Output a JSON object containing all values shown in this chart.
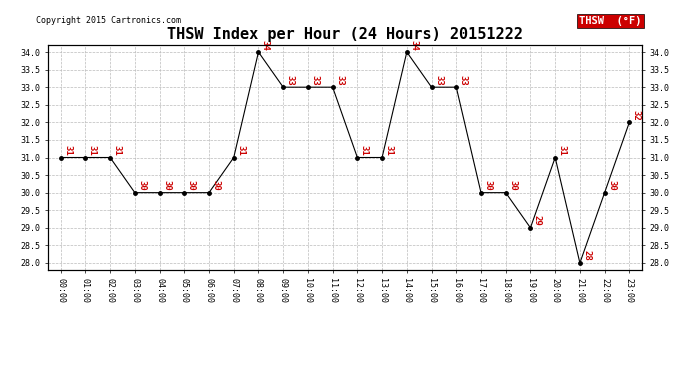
{
  "title": "THSW Index per Hour (24 Hours) 20151222",
  "copyright": "Copyright 2015 Cartronics.com",
  "legend_label": "THSW  (°F)",
  "hours": [
    0,
    1,
    2,
    3,
    4,
    5,
    6,
    7,
    8,
    9,
    10,
    11,
    12,
    13,
    14,
    15,
    16,
    17,
    18,
    19,
    20,
    21,
    22,
    23
  ],
  "values": [
    31,
    31,
    31,
    30,
    30,
    30,
    30,
    31,
    34,
    33,
    33,
    33,
    31,
    31,
    34,
    33,
    33,
    30,
    30,
    29,
    31,
    28,
    30,
    32
  ],
  "x_labels": [
    "00:00",
    "01:00",
    "02:00",
    "03:00",
    "04:00",
    "05:00",
    "06:00",
    "07:00",
    "08:00",
    "09:00",
    "10:00",
    "11:00",
    "12:00",
    "13:00",
    "14:00",
    "15:00",
    "16:00",
    "17:00",
    "18:00",
    "19:00",
    "20:00",
    "21:00",
    "22:00",
    "23:00"
  ],
  "ylim": [
    27.8,
    34.2
  ],
  "yticks": [
    28.0,
    28.5,
    29.0,
    29.5,
    30.0,
    30.5,
    31.0,
    31.5,
    32.0,
    32.5,
    33.0,
    33.5,
    34.0
  ],
  "line_color": "#000000",
  "label_color": "#cc0000",
  "bg_color": "#ffffff",
  "plot_bg_color": "#ffffff",
  "grid_color": "#bbbbbb",
  "legend_bg": "#cc0000",
  "legend_text": "#ffffff",
  "title_fontsize": 11,
  "label_fontsize": 6.5,
  "tick_fontsize": 6,
  "copyright_fontsize": 6
}
